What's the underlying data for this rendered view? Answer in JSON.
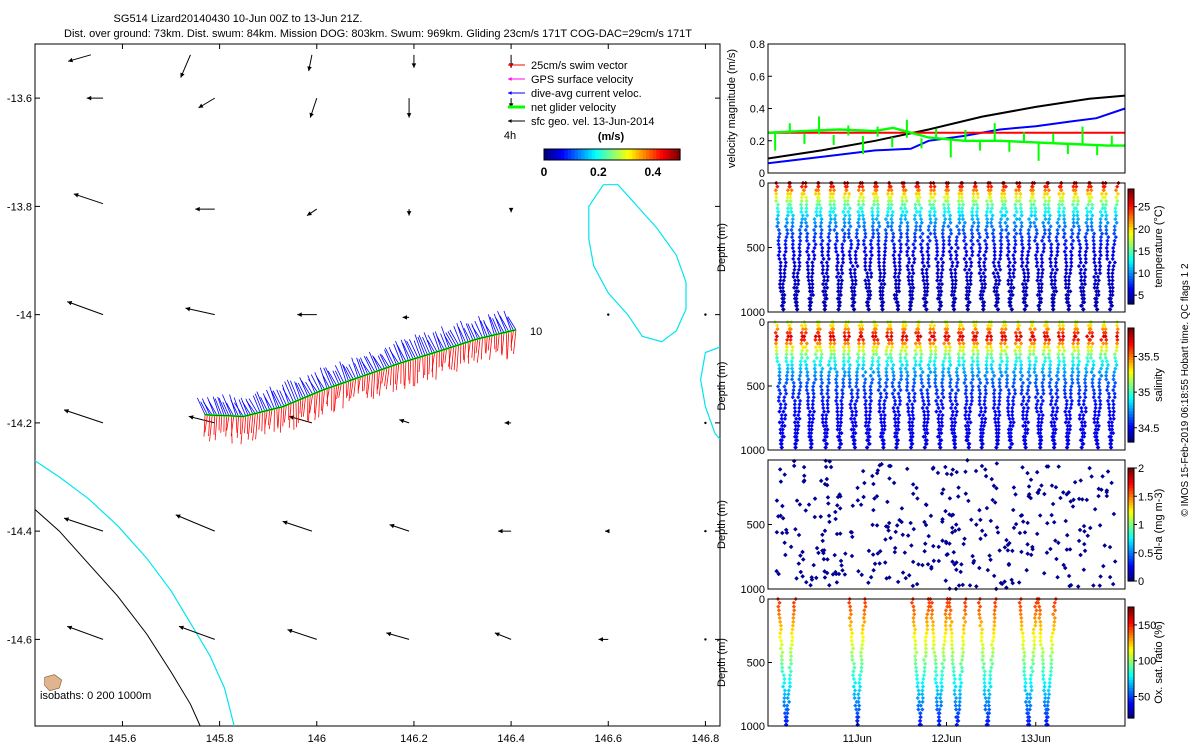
{
  "figure": {
    "title_line1": "SG514 Lizard20140430 10-Jun 00Z to 13-Jun 21Z.",
    "title_line2": "Dist. over ground: 73km. Dist. swum: 84km. Mission DOG: 803km. Swum: 969km. Gliding 23cm/s 171T COG-DAC=29cm/s 171T",
    "credit": "© IMOS 15-Feb-2019 06:18:55 Hobart time. QC flags 1  2"
  },
  "colors": {
    "swim_vector": "#ff0000",
    "gps_velocity": "#ff00ff",
    "dive_avg_current": "#0000ff",
    "net_glider": "#00ff00",
    "sfc_geo": "#000000",
    "reef_outline": "#00e5ee",
    "isobath_1000": "#000000",
    "island_fill": "#e0b48c"
  },
  "chart_data": [
    {
      "id": "map",
      "type": "scatter",
      "xlim": [
        145.42,
        146.83
      ],
      "ylim": [
        -14.76,
        -13.5
      ],
      "xticks": [
        "145.6",
        "145.8",
        "146",
        "146.2",
        "146.4",
        "146.6",
        "146.8"
      ],
      "xtick_values": [
        145.6,
        145.8,
        146.0,
        146.2,
        146.4,
        146.6,
        146.8
      ],
      "yticks": [
        "-13.6",
        "-13.8",
        "-14",
        "-14.2",
        "-14.4",
        "-14.6"
      ],
      "ytick_values": [
        -13.6,
        -13.8,
        -14.0,
        -14.2,
        -14.4,
        -14.6
      ],
      "legend": {
        "position": "top-right",
        "entries": [
          "25cm/s swim vector",
          "GPS surface velocity",
          "dive-avg current veloc.",
          "net glider velocity",
          "sfc geo. vel. 13-Jun-2014"
        ]
      },
      "colorbar": {
        "label": "(m/s)",
        "ticks": [
          "0",
          "0.2",
          "0.4"
        ],
        "tick_values": [
          0,
          0.2,
          0.4
        ],
        "range": [
          0,
          0.5
        ]
      },
      "annotations": {
        "start_marker": "10",
        "time_scale": "4h",
        "isobaths": "isobaths: 0   200   1000m"
      },
      "track": [
        [
          145.77,
          -14.185
        ],
        [
          145.85,
          -14.188
        ],
        [
          145.93,
          -14.17
        ],
        [
          146.01,
          -14.14
        ],
        [
          146.09,
          -14.115
        ],
        [
          146.17,
          -14.09
        ],
        [
          146.25,
          -14.068
        ],
        [
          146.33,
          -14.045
        ],
        [
          146.41,
          -14.028
        ]
      ],
      "geo_vectors": [
        {
          "x": 145.535,
          "y": -13.52,
          "u": -0.35,
          "v": -0.1
        },
        {
          "x": 145.74,
          "y": -13.52,
          "u": -0.15,
          "v": -0.35
        },
        {
          "x": 145.99,
          "y": -13.52,
          "u": -0.05,
          "v": -0.25
        },
        {
          "x": 146.2,
          "y": -13.52,
          "u": 0.0,
          "v": -0.2
        },
        {
          "x": 146.4,
          "y": -13.52,
          "u": 0.0,
          "v": -0.2
        },
        {
          "x": 145.56,
          "y": -13.6,
          "u": -0.25,
          "v": 0.0
        },
        {
          "x": 145.79,
          "y": -13.6,
          "u": -0.25,
          "v": -0.15
        },
        {
          "x": 146.0,
          "y": -13.6,
          "u": -0.1,
          "v": -0.3
        },
        {
          "x": 146.19,
          "y": -13.6,
          "u": 0.0,
          "v": -0.3
        },
        {
          "x": 146.4,
          "y": -13.6,
          "u": 0.0,
          "v": -0.15
        },
        {
          "x": 145.56,
          "y": -13.795,
          "u": -0.45,
          "v": 0.15
        },
        {
          "x": 145.79,
          "y": -13.805,
          "u": -0.3,
          "v": 0.0
        },
        {
          "x": 146.0,
          "y": -13.805,
          "u": -0.15,
          "v": -0.1
        },
        {
          "x": 146.19,
          "y": -13.805,
          "u": 0.0,
          "v": -0.1
        },
        {
          "x": 146.4,
          "y": -13.805,
          "u": 0.0,
          "v": -0.05
        },
        {
          "x": 145.56,
          "y": -14.0,
          "u": -0.55,
          "v": 0.2
        },
        {
          "x": 145.79,
          "y": -14.0,
          "u": -0.45,
          "v": 0.1
        },
        {
          "x": 146.0,
          "y": -14.0,
          "u": -0.3,
          "v": 0.0
        },
        {
          "x": 146.19,
          "y": -14.005,
          "u": -0.1,
          "v": 0.0
        },
        {
          "x": 146.6,
          "y": -14.0,
          "u": 0.0,
          "v": 0.0
        },
        {
          "x": 146.8,
          "y": -14.0,
          "u": 0.0,
          "v": 0.0
        },
        {
          "x": 145.56,
          "y": -14.2,
          "u": -0.6,
          "v": 0.2
        },
        {
          "x": 145.79,
          "y": -14.2,
          "u": -0.4,
          "v": 0.1
        },
        {
          "x": 145.99,
          "y": -14.2,
          "u": -0.35,
          "v": 0.1
        },
        {
          "x": 146.19,
          "y": -14.2,
          "u": -0.15,
          "v": 0.05
        },
        {
          "x": 146.4,
          "y": -14.2,
          "u": -0.1,
          "v": 0.0
        },
        {
          "x": 146.8,
          "y": -14.2,
          "u": 0.0,
          "v": 0.0
        },
        {
          "x": 145.56,
          "y": -14.4,
          "u": -0.6,
          "v": 0.2
        },
        {
          "x": 145.79,
          "y": -14.4,
          "u": -0.6,
          "v": 0.25
        },
        {
          "x": 145.99,
          "y": -14.4,
          "u": -0.45,
          "v": 0.15
        },
        {
          "x": 146.19,
          "y": -14.4,
          "u": -0.3,
          "v": 0.1
        },
        {
          "x": 146.4,
          "y": -14.4,
          "u": -0.2,
          "v": 0.0
        },
        {
          "x": 146.6,
          "y": -14.4,
          "u": -0.05,
          "v": 0.0
        },
        {
          "x": 146.8,
          "y": -14.4,
          "u": 0.0,
          "v": 0.0
        },
        {
          "x": 145.56,
          "y": -14.6,
          "u": -0.55,
          "v": 0.2
        },
        {
          "x": 145.79,
          "y": -14.6,
          "u": -0.55,
          "v": 0.2
        },
        {
          "x": 146.0,
          "y": -14.6,
          "u": -0.45,
          "v": 0.15
        },
        {
          "x": 146.19,
          "y": -14.6,
          "u": -0.35,
          "v": 0.1
        },
        {
          "x": 146.4,
          "y": -14.6,
          "u": -0.25,
          "v": 0.1
        },
        {
          "x": 146.6,
          "y": -14.6,
          "u": -0.15,
          "v": 0.0
        },
        {
          "x": 146.8,
          "y": -14.6,
          "u": 0.0,
          "v": 0.0
        }
      ],
      "reef_outlines": [
        [
          [
            146.59,
            -13.76
          ],
          [
            146.62,
            -13.76
          ],
          [
            146.66,
            -13.8
          ],
          [
            146.7,
            -13.84
          ],
          [
            146.74,
            -13.89
          ],
          [
            146.76,
            -13.94
          ],
          [
            146.76,
            -13.99
          ],
          [
            146.74,
            -14.03
          ],
          [
            146.71,
            -14.05
          ],
          [
            146.67,
            -14.04
          ],
          [
            146.64,
            -14.0
          ],
          [
            146.6,
            -13.96
          ],
          [
            146.57,
            -13.91
          ],
          [
            146.56,
            -13.86
          ],
          [
            146.56,
            -13.8
          ],
          [
            146.59,
            -13.76
          ]
        ],
        [
          [
            146.83,
            -14.06
          ],
          [
            146.8,
            -14.07
          ],
          [
            146.79,
            -14.12
          ],
          [
            146.8,
            -14.17
          ],
          [
            146.82,
            -14.22
          ],
          [
            146.83,
            -14.23
          ]
        ],
        [
          [
            145.42,
            -14.27
          ],
          [
            145.47,
            -14.3
          ],
          [
            145.53,
            -14.34
          ],
          [
            145.59,
            -14.39
          ],
          [
            145.65,
            -14.45
          ],
          [
            145.7,
            -14.51
          ],
          [
            145.74,
            -14.57
          ],
          [
            145.78,
            -14.63
          ],
          [
            145.81,
            -14.69
          ],
          [
            145.83,
            -14.76
          ]
        ]
      ],
      "isobath_1000": [
        [
          145.42,
          -14.36
        ],
        [
          145.47,
          -14.4
        ],
        [
          145.53,
          -14.46
        ],
        [
          145.59,
          -14.52
        ],
        [
          145.65,
          -14.59
        ],
        [
          145.7,
          -14.66
        ],
        [
          145.74,
          -14.72
        ],
        [
          145.76,
          -14.76
        ]
      ],
      "island": [
        [
          145.44,
          -14.67
        ],
        [
          145.46,
          -14.665
        ],
        [
          145.475,
          -14.675
        ],
        [
          145.47,
          -14.69
        ],
        [
          145.45,
          -14.695
        ],
        [
          145.44,
          -14.685
        ]
      ]
    },
    {
      "id": "velocity",
      "type": "line",
      "ylabel": "velocity magnitude (m/s)",
      "ylim": [
        0,
        0.8
      ],
      "yticks": [
        "0",
        "0.2",
        "0.4",
        "0.6",
        "0.8"
      ],
      "ytick_values": [
        0,
        0.2,
        0.4,
        0.6,
        0.8
      ],
      "xlim": [
        0,
        100
      ],
      "series": [
        {
          "color": "#000000",
          "x": [
            0,
            15,
            30,
            45,
            60,
            75,
            90,
            100
          ],
          "y": [
            0.09,
            0.14,
            0.2,
            0.27,
            0.35,
            0.41,
            0.46,
            0.48
          ]
        },
        {
          "color": "#0000ff",
          "x": [
            0,
            15,
            30,
            40,
            45,
            55,
            65,
            75,
            85,
            92,
            100
          ],
          "y": [
            0.06,
            0.1,
            0.14,
            0.15,
            0.2,
            0.23,
            0.27,
            0.29,
            0.32,
            0.34,
            0.4
          ]
        },
        {
          "color": "#ff0000",
          "x": [
            0,
            100
          ],
          "y": [
            0.25,
            0.25
          ]
        },
        {
          "color": "#00ff00",
          "x": [
            0,
            10,
            20,
            30,
            35,
            40,
            45,
            55,
            65,
            75,
            85,
            95,
            100
          ],
          "y": [
            0.25,
            0.26,
            0.27,
            0.26,
            0.28,
            0.25,
            0.22,
            0.2,
            0.2,
            0.19,
            0.18,
            0.17,
            0.17
          ]
        }
      ]
    },
    {
      "id": "temperature",
      "type": "scatter",
      "ylabel": "Depth (m)",
      "clabel": "temperature (°C)",
      "ylim": [
        0,
        1000
      ],
      "yticks": [
        "0",
        "500",
        "1000"
      ],
      "ytick_values": [
        0,
        500,
        1000
      ],
      "cticks": [
        "5",
        "10",
        "15",
        "20",
        "25"
      ],
      "ctick_values": [
        5,
        10,
        15,
        20,
        25
      ],
      "crange": [
        3,
        29
      ],
      "dives": 24,
      "max_depth": 1000
    },
    {
      "id": "salinity",
      "type": "scatter",
      "ylabel": "Depth (m)",
      "clabel": "salinity",
      "ylim": [
        0,
        1000
      ],
      "yticks": [
        "0",
        "500",
        "1000"
      ],
      "ytick_values": [
        0,
        500,
        1000
      ],
      "cticks": [
        "34.5",
        "35",
        "35.5"
      ],
      "ctick_values": [
        34.5,
        35,
        35.5
      ],
      "crange": [
        34.3,
        35.9
      ],
      "dives": 24,
      "max_depth": 1000
    },
    {
      "id": "chla",
      "type": "scatter",
      "ylabel": "Depth (m)",
      "clabel": "chl-a (mg m-3)",
      "ylim": [
        0,
        1000
      ],
      "yticks": [
        "500",
        "1000"
      ],
      "ytick_values": [
        500,
        1000
      ],
      "cticks": [
        "0",
        "0.5",
        "1",
        "1.5",
        "2"
      ],
      "ctick_values": [
        0,
        0.5,
        1,
        1.5,
        2
      ],
      "crange": [
        0,
        2
      ]
    },
    {
      "id": "oxygen",
      "type": "scatter",
      "ylabel": "Depth (m)",
      "clabel": "Ox. sat. ratio (%)",
      "ylim": [
        0,
        1000
      ],
      "yticks": [
        "0",
        "500",
        "1000"
      ],
      "ytick_values": [
        0,
        500,
        1000
      ],
      "cticks": [
        "50",
        "100",
        "150"
      ],
      "ctick_values": [
        50,
        100,
        150
      ],
      "crange": [
        20,
        175
      ],
      "xticks": [
        "11Jun",
        "12Jun",
        "13Jun"
      ],
      "xtick_values": [
        24,
        48,
        72
      ],
      "xlim": [
        0,
        96
      ],
      "dive_pairs": [
        5,
        24,
        41,
        46,
        51,
        59,
        70,
        75
      ]
    }
  ]
}
